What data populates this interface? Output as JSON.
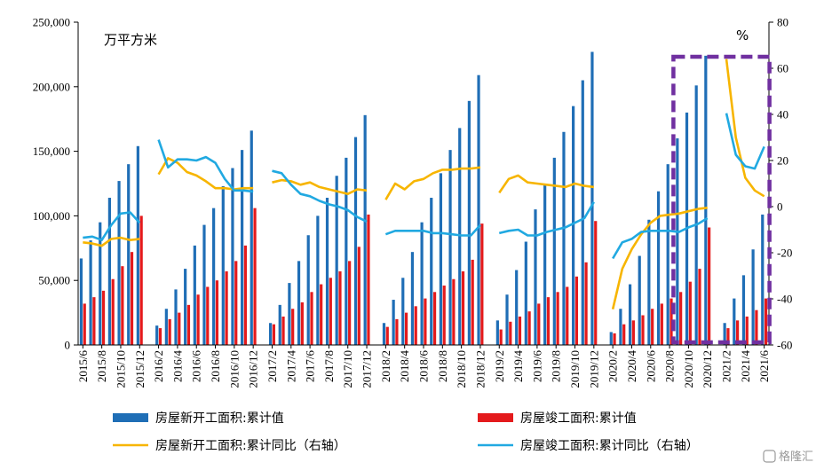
{
  "chart_data": {
    "type": "bar",
    "left_unit": "万平方米",
    "right_unit": "%",
    "ylim_left": [
      0,
      250000
    ],
    "ylim_right": [
      -60,
      80
    ],
    "yticks_left": [
      "0",
      "50,000",
      "100,000",
      "150,000",
      "200,000",
      "250,000"
    ],
    "yticks_right": [
      "-60",
      "-40",
      "-20",
      "0",
      "20",
      "40",
      "60",
      "80"
    ],
    "months": [
      "2015/6",
      "2015/7",
      "2015/8",
      "2015/9",
      "2015/10",
      "2015/11",
      "2015/12",
      "2016/1",
      "2016/2",
      "2016/3",
      "2016/4",
      "2016/5",
      "2016/6",
      "2016/7",
      "2016/8",
      "2016/9",
      "2016/10",
      "2016/11",
      "2016/12",
      "2017/1",
      "2017/2",
      "2017/3",
      "2017/4",
      "2017/5",
      "2017/6",
      "2017/7",
      "2017/8",
      "2017/9",
      "2017/10",
      "2017/11",
      "2017/12",
      "2018/1",
      "2018/2",
      "2018/3",
      "2018/4",
      "2018/5",
      "2018/6",
      "2018/7",
      "2018/8",
      "2018/9",
      "2018/10",
      "2018/11",
      "2018/12",
      "2019/1",
      "2019/2",
      "2019/3",
      "2019/4",
      "2019/5",
      "2019/6",
      "2019/7",
      "2019/8",
      "2019/9",
      "2019/10",
      "2019/11",
      "2019/12",
      "2020/1",
      "2020/2",
      "2020/3",
      "2020/4",
      "2020/5",
      "2020/6",
      "2020/7",
      "2020/8",
      "2020/9",
      "2020/10",
      "2020/11",
      "2020/12",
      "2021/1",
      "2021/2",
      "2021/3",
      "2021/4",
      "2021/5",
      "2021/6"
    ],
    "x_tick_labels": [
      "2015/6",
      "2015/8",
      "2015/10",
      "2015/12",
      "2016/2",
      "2016/4",
      "2016/6",
      "2016/8",
      "2016/10",
      "2016/12",
      "2017/2",
      "2017/4",
      "2017/6",
      "2017/8",
      "2017/10",
      "2017/12",
      "2018/2",
      "2018/4",
      "2018/6",
      "2018/8",
      "2018/10",
      "2018/12",
      "2019/2",
      "2019/4",
      "2019/6",
      "2019/8",
      "2019/10",
      "2019/12",
      "2020/2",
      "2020/4",
      "2020/6",
      "2020/8",
      "2020/10",
      "2020/12",
      "2021/2",
      "2021/4",
      "2021/6"
    ],
    "series": [
      {
        "name": "房屋新开工面积:累计值",
        "type": "bar",
        "axis": "left",
        "color": "#1f6eb6",
        "values": [
          67000,
          81000,
          95000,
          114000,
          127000,
          140000,
          154000,
          null,
          15000,
          28000,
          43000,
          59000,
          77000,
          93000,
          106000,
          123000,
          137000,
          151000,
          166000,
          null,
          17000,
          31000,
          48000,
          65000,
          85000,
          100000,
          114000,
          131000,
          145000,
          161000,
          178000,
          null,
          17000,
          35000,
          52000,
          72000,
          95000,
          114000,
          133000,
          151000,
          168000,
          189000,
          209000,
          null,
          19000,
          39000,
          58000,
          80000,
          105000,
          125000,
          145000,
          165000,
          185000,
          205000,
          227000,
          null,
          10000,
          28000,
          47000,
          69000,
          97000,
          119000,
          140000,
          160000,
          180000,
          201000,
          224000,
          null,
          17000,
          36000,
          54000,
          74000,
          101000
        ]
      },
      {
        "name": "房屋竣工面积:累计值",
        "type": "bar",
        "axis": "left",
        "color": "#e41a1c",
        "values": [
          32000,
          37000,
          42000,
          51000,
          61000,
          72000,
          100000,
          null,
          13000,
          20000,
          25000,
          31000,
          39000,
          45000,
          50000,
          57000,
          65000,
          77000,
          106000,
          null,
          16000,
          22000,
          28000,
          33000,
          41000,
          47000,
          52000,
          57000,
          65000,
          76000,
          101000,
          null,
          14000,
          20000,
          25000,
          30000,
          36000,
          41000,
          46000,
          51000,
          57000,
          66000,
          94000,
          null,
          12000,
          18000,
          22000,
          26000,
          32000,
          37000,
          41000,
          45000,
          53000,
          64000,
          96000,
          null,
          9000,
          16000,
          19000,
          23000,
          28000,
          32000,
          36000,
          41000,
          49000,
          59000,
          91000,
          null,
          13000,
          19000,
          22000,
          27000,
          36000
        ]
      },
      {
        "name": "房屋新开工面积:累计同比（右轴）",
        "type": "line",
        "axis": "right",
        "color": "#f7b500",
        "values": [
          -15.5,
          -16,
          -17,
          -14,
          -13.5,
          -14.5,
          -14,
          null,
          14,
          21,
          19,
          15,
          13.5,
          11,
          8,
          8,
          7.5,
          8,
          8,
          null,
          10.5,
          11.5,
          11,
          9.5,
          10.5,
          8.5,
          7.5,
          6.5,
          5.5,
          7.5,
          7,
          null,
          3,
          10,
          7.5,
          11,
          12,
          14.5,
          16,
          16,
          16.5,
          16.5,
          17,
          null,
          6,
          12,
          13.5,
          10.5,
          10,
          9.5,
          9,
          8.5,
          10,
          9,
          8.5,
          null,
          -44.5,
          -27,
          -18.5,
          -12,
          -7,
          -4,
          -3.5,
          -3,
          -2,
          -1,
          -0.5,
          null,
          64,
          30,
          12.5,
          7,
          4.5
        ]
      },
      {
        "name": "房屋竣工面积:累计同比（右轴）",
        "type": "line",
        "axis": "right",
        "color": "#21a9e1",
        "values": [
          -13.5,
          -13,
          -14.5,
          -8,
          -3,
          -2.5,
          -7,
          null,
          29,
          17,
          20.5,
          20.5,
          20,
          21.5,
          19,
          12,
          7,
          7,
          6.5,
          null,
          15.5,
          14.5,
          9.5,
          5.5,
          4.5,
          2.5,
          1,
          0,
          -1.5,
          -4.5,
          -6.5,
          null,
          -12,
          -10.5,
          -10.5,
          -10.5,
          -10.5,
          -11.5,
          -11.5,
          -12,
          -12.5,
          -12.5,
          -8,
          null,
          -11.5,
          -10.5,
          -10,
          -12.5,
          -12.5,
          -11,
          -10,
          -9,
          -7,
          -5,
          2,
          null,
          -22.5,
          -15.5,
          -14,
          -11,
          -10.5,
          -10.5,
          -10.5,
          -11,
          -9,
          -7.5,
          -5,
          null,
          40.5,
          22.5,
          17.5,
          16.5,
          26
        ]
      }
    ],
    "legend": [
      "房屋新开工面积:累计值",
      "房屋竣工面积:累计值",
      "房屋新开工面积:累计同比（右轴）",
      "房屋竣工面积:累计同比（右轴）"
    ],
    "highlight": {
      "from": "2020/9",
      "to": "2021/6",
      "color": "#7030a0"
    },
    "grid": false
  },
  "watermark": "格隆汇"
}
